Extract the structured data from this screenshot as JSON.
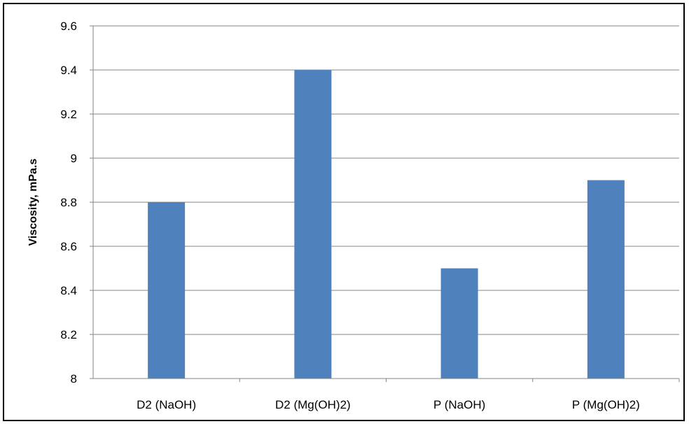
{
  "chart_data": {
    "type": "bar",
    "title": "",
    "xlabel": "",
    "ylabel": "Viscosity, mPa.s",
    "categories": [
      "D2 (NaOH)",
      "D2 (Mg(OH)2)",
      "P (NaOH)",
      "P (Mg(OH)2)"
    ],
    "values": [
      8.8,
      9.4,
      8.5,
      8.9
    ],
    "ylim": [
      8,
      9.6
    ],
    "yticks": [
      8,
      8.2,
      8.4,
      8.6,
      8.8,
      9,
      9.2,
      9.4,
      9.6
    ],
    "ytick_labels": [
      "8",
      "8.2",
      "8.4",
      "8.6",
      "8.8",
      "9",
      "9.2",
      "9.4",
      "9.6"
    ],
    "grid": true,
    "legend": "none",
    "bar_color": "#4F81BD",
    "grid_color": "#868686"
  }
}
